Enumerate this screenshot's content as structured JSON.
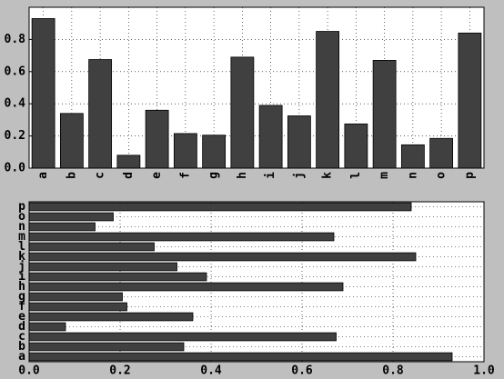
{
  "chart_data": [
    {
      "type": "bar",
      "categories": [
        "a",
        "b",
        "c",
        "d",
        "e",
        "f",
        "g",
        "h",
        "i",
        "j",
        "k",
        "l",
        "m",
        "n",
        "o",
        "p"
      ],
      "values": [
        0.93,
        0.34,
        0.675,
        0.08,
        0.36,
        0.215,
        0.205,
        0.69,
        0.39,
        0.325,
        0.85,
        0.275,
        0.67,
        0.145,
        0.185,
        0.84
      ],
      "color": "#404040",
      "ylim": [
        0,
        1
      ],
      "yticks": [
        {
          "value": 0,
          "label": "0.0"
        },
        0.2,
        0.4,
        0.6,
        0.8
      ],
      "grid": true
    },
    {
      "type": "barh",
      "categories": [
        "a",
        "b",
        "c",
        "d",
        "e",
        "f",
        "g",
        "h",
        "i",
        "j",
        "k",
        "l",
        "m",
        "n",
        "o",
        "p"
      ],
      "values": [
        0.93,
        0.34,
        0.675,
        0.08,
        0.36,
        0.215,
        0.205,
        0.69,
        0.39,
        0.325,
        0.85,
        0.275,
        0.67,
        0.145,
        0.185,
        0.84
      ],
      "color": "#404040",
      "xlim": [
        0,
        1
      ],
      "xticks": [
        {
          "value": 0,
          "label": "0.0"
        },
        0.2,
        0.4,
        0.6,
        0.8,
        {
          "value": 1,
          "label": "1.0"
        }
      ],
      "grid": true
    }
  ]
}
